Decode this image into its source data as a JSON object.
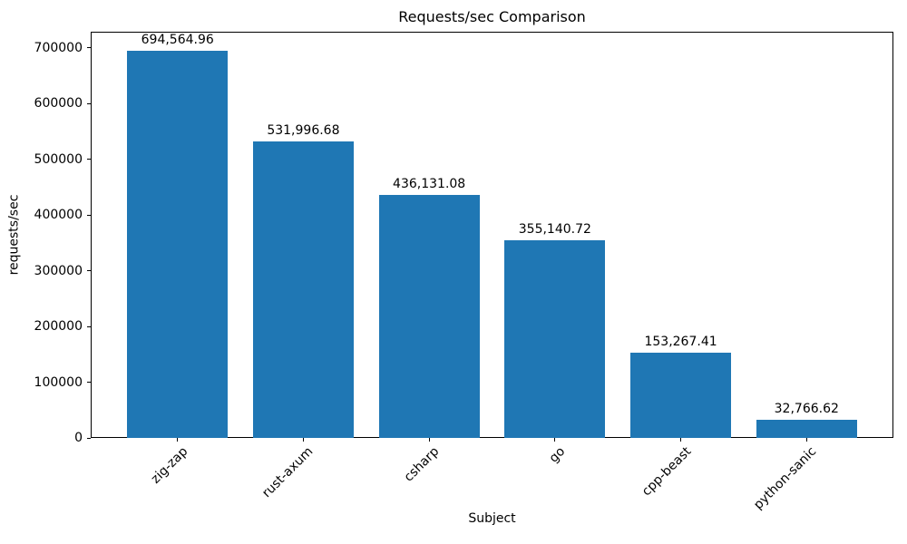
{
  "chart_data": {
    "type": "bar",
    "title": "Requests/sec Comparison",
    "xlabel": "Subject",
    "ylabel": "requests/sec",
    "categories": [
      "zig-zap",
      "rust-axum",
      "csharp",
      "go",
      "cpp-beast",
      "python-sanic"
    ],
    "values": [
      694564.96,
      531996.68,
      436131.08,
      355140.72,
      153267.41,
      32766.62
    ],
    "value_labels": [
      "694,564.96",
      "531,996.68",
      "436,131.08",
      "355,140.72",
      "153,267.41",
      "32,766.62"
    ],
    "y_ticks": [
      0,
      100000,
      200000,
      300000,
      400000,
      500000,
      600000,
      700000
    ],
    "y_tick_labels": [
      "0",
      "100000",
      "200000",
      "300000",
      "400000",
      "500000",
      "600000",
      "700000"
    ],
    "ylim": [
      0,
      729293
    ],
    "bar_color": "#1f77b4",
    "text_color": "#000000",
    "x_tick_rotation_deg": 45,
    "grid": false,
    "legend": null
  }
}
